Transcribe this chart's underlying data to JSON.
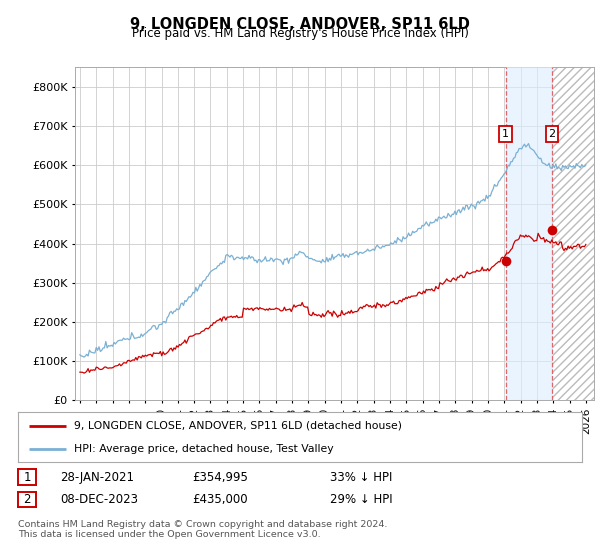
{
  "title": "9, LONGDEN CLOSE, ANDOVER, SP11 6LD",
  "subtitle": "Price paid vs. HM Land Registry's House Price Index (HPI)",
  "ylim": [
    0,
    850000
  ],
  "yticks": [
    0,
    100000,
    200000,
    300000,
    400000,
    500000,
    600000,
    700000,
    800000
  ],
  "xlim_start": 1994.7,
  "xlim_end": 2026.5,
  "property_color": "#cc0000",
  "hpi_color": "#7ab0d4",
  "hpi_shade_color": "#ddeeff",
  "grid_color": "#cccccc",
  "sale1_x": 2021.08,
  "sale1_y": 354995,
  "sale2_x": 2023.92,
  "sale2_y": 435000,
  "legend_property": "9, LONGDEN CLOSE, ANDOVER, SP11 6LD (detached house)",
  "legend_hpi": "HPI: Average price, detached house, Test Valley",
  "footnote": "Contains HM Land Registry data © Crown copyright and database right 2024.\nThis data is licensed under the Open Government Licence v3.0.",
  "sale1_label": "1",
  "sale1_date": "28-JAN-2021",
  "sale1_price": "£354,995",
  "sale1_pct": "33% ↓ HPI",
  "sale2_label": "2",
  "sale2_date": "08-DEC-2023",
  "sale2_price": "£435,000",
  "sale2_pct": "29% ↓ HPI"
}
